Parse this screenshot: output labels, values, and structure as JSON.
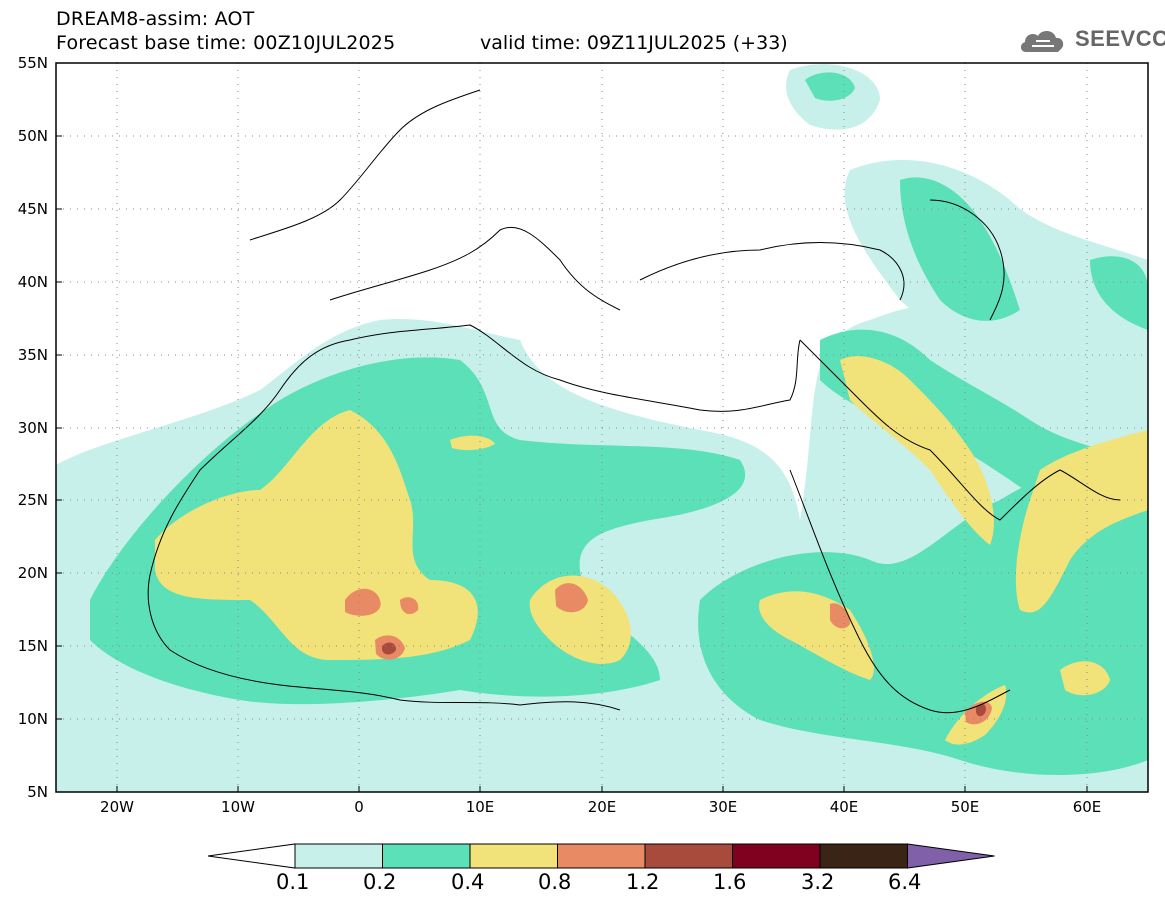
{
  "header": {
    "title": "DREAM8-assim: AOT",
    "base_time": "Forecast base time: 00Z10JUL2025",
    "valid_time": "valid time: 09Z11JUL2025 (+33)",
    "logo_text": "SEEVCCC",
    "logo_icon": "cloud-icon"
  },
  "map": {
    "projection": "lat-lon",
    "lon_range": [
      -25,
      65
    ],
    "lat_range": [
      5,
      55
    ],
    "lat_labels": [
      "55N",
      "50N",
      "45N",
      "40N",
      "35N",
      "30N",
      "25N",
      "20N",
      "15N",
      "10N",
      "5N"
    ],
    "lon_labels": [
      "20W",
      "10W",
      "0",
      "10E",
      "20E",
      "30E",
      "40E",
      "50E",
      "60E"
    ],
    "grid": "dotted",
    "field": "AOT (aerosol optical thickness)"
  },
  "colorbar": {
    "labels": [
      "0.1",
      "0.2",
      "0.4",
      "0.8",
      "1.2",
      "1.6",
      "3.2",
      "6.4"
    ],
    "colors": [
      "#c8f0ea",
      "#5ce0b8",
      "#f2e27a",
      "#e88a64",
      "#a84a3c",
      "#800020",
      "#3a2416",
      "#8060a8"
    ]
  }
}
